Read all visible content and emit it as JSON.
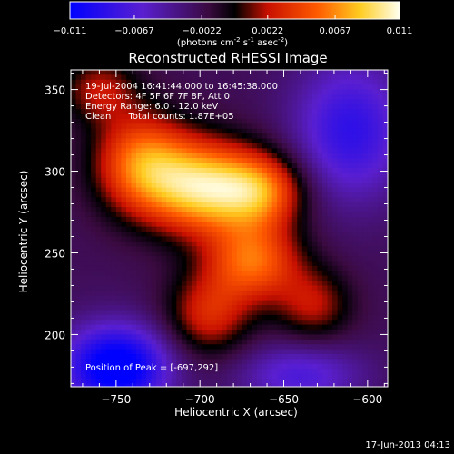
{
  "colorbar": {
    "ticks": [
      "-0.011",
      "-0.0067",
      "-0.0022",
      "0.0022",
      "0.0067",
      "0.011"
    ],
    "units_prefix": "(photons cm",
    "units_exp1": "-2",
    "units_mid": " s",
    "units_exp2": "-1",
    "units_mid2": " asec",
    "units_exp3": "-2",
    "units_suffix": ")",
    "range": [
      -0.011,
      0.011
    ]
  },
  "title": "Reconstructed RHESSI Image",
  "info": {
    "time": "19-Jul-2004 16:41:44.000 to 16:45:38.000",
    "detectors": "Detectors: 4F 5F 6F 7F 8F, Att 0",
    "energy": "Energy Range: 6.0 - 12.0 keV",
    "clean": "Clean      Total counts: 1.87E+05",
    "peak": "Position of Peak = [-697,292]"
  },
  "footer": {
    "date": "17-Jun-2013 04:13"
  },
  "chart_data": {
    "type": "heatmap",
    "title": "Reconstructed RHESSI Image",
    "xlabel": "Heliocentric X (arcsec)",
    "ylabel": "Heliocentric Y (arcsec)",
    "xlim": [
      -777,
      -588
    ],
    "ylim": [
      168,
      362
    ],
    "xticks": [
      -750,
      -700,
      -650,
      -600
    ],
    "yticks": [
      200,
      250,
      300,
      350
    ],
    "xtick_labels": [
      "−750",
      "−700",
      "−650",
      "−600"
    ],
    "ytick_labels": [
      "200",
      "250",
      "300",
      "350"
    ],
    "colorscale": [
      "#0000ff",
      "#7a2cc8",
      "#000000",
      "#d81a00",
      "#ff8a00",
      "#ffffe0"
    ],
    "peak": [
      -697,
      292
    ],
    "sources": [
      {
        "x": -697,
        "y": 290,
        "sx": 24,
        "sy": 20,
        "amp": 0.011
      },
      {
        "x": -735,
        "y": 305,
        "sx": 20,
        "sy": 22,
        "amp": 0.0082
      },
      {
        "x": -668,
        "y": 245,
        "sx": 20,
        "sy": 17,
        "amp": 0.0078
      },
      {
        "x": -662,
        "y": 288,
        "sx": 18,
        "sy": 16,
        "amp": 0.007
      },
      {
        "x": -695,
        "y": 212,
        "sx": 18,
        "sy": 18,
        "amp": 0.0055
      },
      {
        "x": -632,
        "y": 218,
        "sx": 16,
        "sy": 16,
        "amp": 0.0045
      },
      {
        "x": -760,
        "y": 350,
        "sx": 16,
        "sy": 14,
        "amp": 0.0045
      },
      {
        "x": -750,
        "y": 180,
        "sx": 22,
        "sy": 18,
        "amp": -0.01
      },
      {
        "x": -610,
        "y": 325,
        "sx": 24,
        "sy": 30,
        "amp": -0.006
      },
      {
        "x": -640,
        "y": 175,
        "sx": 26,
        "sy": 14,
        "amp": -0.0045
      }
    ]
  }
}
